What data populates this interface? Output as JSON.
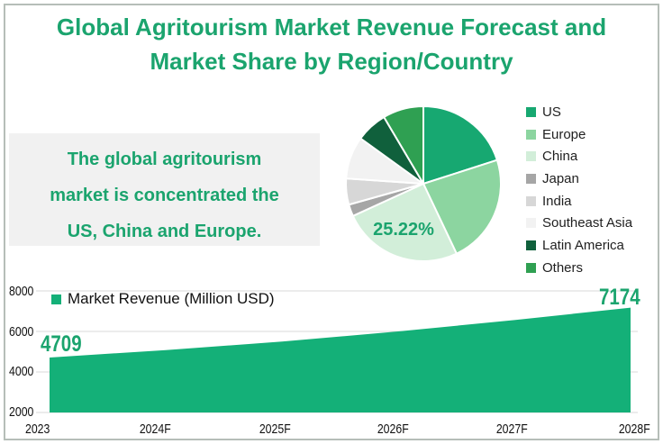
{
  "title": {
    "line1": "Global Agritourism Market Revenue Forecast and",
    "line2": "Market Share by Region/Country"
  },
  "callout": {
    "line1": "The global agritourism",
    "line2": "market is concentrated the",
    "line3": "US, China and Europe."
  },
  "palette": {
    "accent": "#1BA46E",
    "area_fill": "#14B078",
    "grid": "#D9D9D9",
    "callout_bg": "#F1F1F1",
    "border": "#B6BEB8"
  },
  "chart_data": [
    {
      "type": "pie",
      "title": "Market Share by Region/Country",
      "legend_position": "right",
      "highlight_label": "25.22%",
      "highlight_series": "China",
      "series": [
        {
          "name": "US",
          "value": 20.06,
          "color": "#17A871"
        },
        {
          "name": "Europe",
          "value": 22.89,
          "color": "#8CD5A0"
        },
        {
          "name": "China",
          "value": 25.22,
          "color": "#D2EED9"
        },
        {
          "name": "Japan",
          "value": 2.47,
          "color": "#A6A6A6"
        },
        {
          "name": "India",
          "value": 5.44,
          "color": "#D7D7D7"
        },
        {
          "name": "Southeast Asia",
          "value": 8.86,
          "color": "#F2F2F2"
        },
        {
          "name": "Latin America",
          "value": 6.56,
          "color": "#10603C"
        },
        {
          "name": "Others",
          "value": 8.5,
          "color": "#2FA052"
        }
      ]
    },
    {
      "type": "area",
      "legend": "Market Revenue (Million USD)",
      "categories": [
        "2023",
        "2024F",
        "2025F",
        "2026F",
        "2027F",
        "2028F"
      ],
      "values": [
        4709,
        5080,
        5500,
        6000,
        6560,
        7174
      ],
      "ylim": [
        2000,
        8000
      ],
      "yticks_display": [
        "8000",
        "6000",
        "4000",
        "2000"
      ],
      "grid": "on",
      "shown_labels_note": "only first (4709) and last (7174) points are labeled"
    }
  ]
}
